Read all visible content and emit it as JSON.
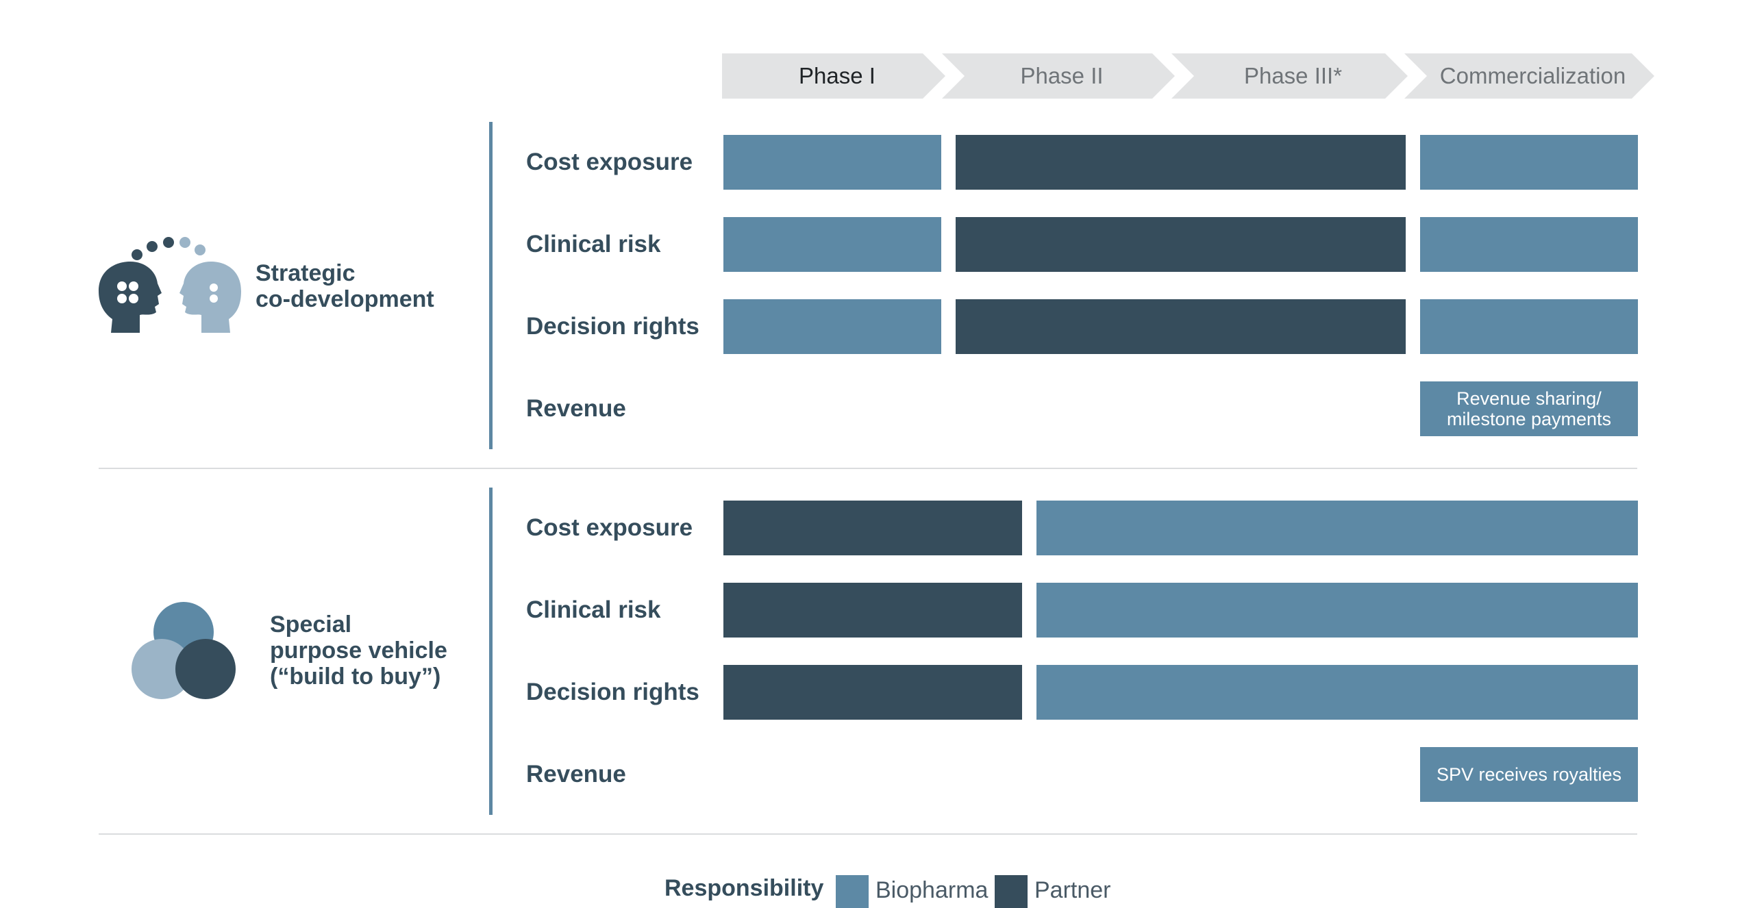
{
  "phases": [
    "Phase I",
    "Phase II",
    "Phase III*",
    "Commercialization"
  ],
  "groups": [
    {
      "name": "Strategic\nco-development",
      "icon": "two-heads-icon",
      "rows": [
        "Cost exposure",
        "Clinical risk",
        "Decision rights",
        "Revenue"
      ],
      "responsibility": {
        "Phase I": "Biopharma",
        "Phase II": "Partner",
        "Phase III*": "Partner",
        "Commercialization": "Biopharma"
      },
      "revenue_note": "Revenue sharing/\nmilestone payments"
    },
    {
      "name": "Special\npurpose vehicle\n(“build to buy”)",
      "icon": "venn-circles-icon",
      "rows": [
        "Cost exposure",
        "Clinical risk",
        "Decision rights",
        "Revenue"
      ],
      "responsibility": {
        "Phase I": "Partner",
        "Phase II": "Biopharma",
        "Phase III*": "Biopharma",
        "Commercialization": "Biopharma"
      },
      "revenue_note": "SPV receives royalties"
    }
  ],
  "legend": {
    "title": "Responsibility",
    "items": [
      {
        "label": "Biopharma",
        "color": "#5d89a5"
      },
      {
        "label": "Partner",
        "color": "#364d5c"
      }
    ]
  }
}
